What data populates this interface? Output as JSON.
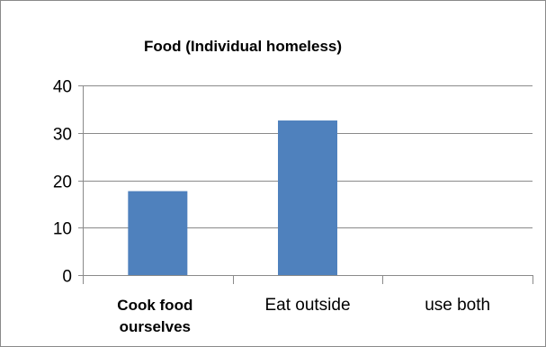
{
  "chart_data": {
    "type": "bar",
    "title": "Food (Individual homeless)",
    "categories": [
      "Cook food ourselves",
      "Eat outside",
      "use both"
    ],
    "category_label_lines": [
      [
        "Cook food",
        "ourselves"
      ],
      [
        "Eat outside"
      ],
      [
        "use both"
      ]
    ],
    "values": [
      17.7,
      32.6,
      0
    ],
    "ylim": [
      0,
      40
    ],
    "yticks": [
      0,
      10,
      20,
      30,
      40
    ],
    "yticks_labels": [
      "0",
      "10",
      "20",
      "30",
      "40"
    ],
    "grid": true,
    "legend": "none",
    "bar_color": "#4f81bd",
    "grid_color": "#8a8a8a",
    "bold_categories": [
      0
    ]
  }
}
